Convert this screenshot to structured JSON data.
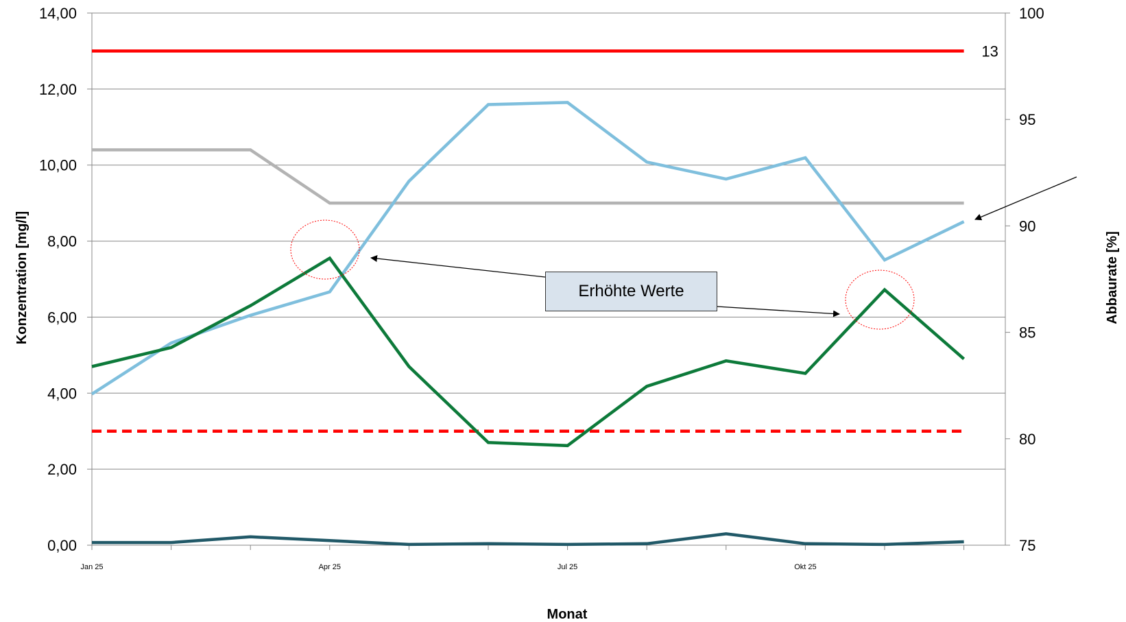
{
  "chart_data": {
    "type": "line",
    "xlabel": "Monat",
    "ylabel_left": "Konzentration [mg/l]",
    "ylabel_right": "Abbaurate [%]",
    "x_tick_labels": [
      {
        "index": 0,
        "label": "Jan 25"
      },
      {
        "index": 3,
        "label": "Apr 25"
      },
      {
        "index": 6,
        "label": "Jul 25"
      },
      {
        "index": 9,
        "label": "Okt 25"
      }
    ],
    "months": 12,
    "ylim_left": [
      0,
      14
    ],
    "yticks_left": [
      "0,00",
      "2,00",
      "4,00",
      "6,00",
      "8,00",
      "10,00",
      "12,00",
      "14,00"
    ],
    "ylim_right": [
      75,
      100
    ],
    "yticks_right": [
      "75",
      "80",
      "85",
      "90",
      "95",
      "100"
    ],
    "grid": true,
    "series": [
      {
        "axis": "left",
        "color": "#ff0000",
        "style": "solid",
        "values": [
          13,
          13,
          13,
          13,
          13,
          13,
          13,
          13,
          13,
          13,
          13,
          13
        ]
      },
      {
        "axis": "left",
        "color": "#ff0000",
        "style": "dashed",
        "values": [
          3,
          3,
          3,
          3,
          3,
          3,
          3,
          3,
          3,
          3,
          3,
          3
        ]
      },
      {
        "axis": "left",
        "color": "#b3b3b3",
        "style": "solid",
        "values": [
          10.4,
          10.4,
          10.4,
          9.0,
          9.0,
          9.0,
          9.0,
          9.0,
          9.0,
          9.0,
          9.0,
          9.0
        ]
      },
      {
        "axis": "right",
        "color": "#7fbfdd",
        "style": "solid",
        "values": [
          82.1,
          84.5,
          85.8,
          86.9,
          92.1,
          95.7,
          95.8,
          93.0,
          92.2,
          93.2,
          88.4,
          90.2
        ]
      },
      {
        "axis": "left",
        "color": "#0d7a3a",
        "style": "solid",
        "values": [
          4.7,
          5.2,
          6.3,
          7.55,
          4.7,
          2.7,
          2.62,
          4.18,
          4.85,
          4.52,
          6.72,
          4.9
        ]
      },
      {
        "axis": "left",
        "color": "#215968",
        "style": "solid",
        "values": [
          0.07,
          0.07,
          0.22,
          0.12,
          0.02,
          0.04,
          0.02,
          0.04,
          0.3,
          0.04,
          0.02,
          0.09
        ]
      }
    ],
    "annotations": [
      {
        "type": "label",
        "text": "13",
        "series_index": 0
      },
      {
        "type": "callout",
        "text": "Erhöhte Werte"
      }
    ]
  }
}
